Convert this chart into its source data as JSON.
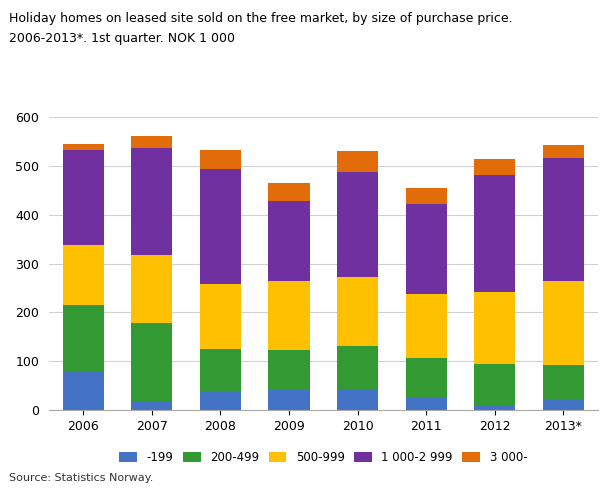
{
  "title_line1": "Holiday homes on leased site sold on the free market, by size of purchase price.",
  "title_line2": "2006-2013*. 1st quarter. NOK 1 000",
  "years": [
    "2006",
    "2007",
    "2008",
    "2009",
    "2010",
    "2011",
    "2012",
    "2013*"
  ],
  "categories": [
    "-199",
    "200-499",
    "500-999",
    "1 000-2 999",
    "3 000-"
  ],
  "colors": [
    "#4472c4",
    "#339933",
    "#ffc000",
    "#7030a0",
    "#e36c0a"
  ],
  "data": {
    "-199": [
      78,
      18,
      37,
      42,
      42,
      27,
      11,
      20
    ],
    "200-499": [
      138,
      160,
      88,
      80,
      88,
      80,
      83,
      72
    ],
    "500-999": [
      122,
      140,
      133,
      142,
      142,
      130,
      148,
      172
    ],
    "1 000-2 999": [
      195,
      218,
      235,
      165,
      215,
      185,
      240,
      253
    ],
    "3 000-": [
      12,
      25,
      40,
      35,
      43,
      33,
      33,
      25
    ]
  },
  "ylim": [
    0,
    600
  ],
  "yticks": [
    0,
    100,
    200,
    300,
    400,
    500,
    600
  ],
  "source": "Source: Statistics Norway.",
  "background_color": "#ffffff",
  "grid_color": "#d0d0d0"
}
